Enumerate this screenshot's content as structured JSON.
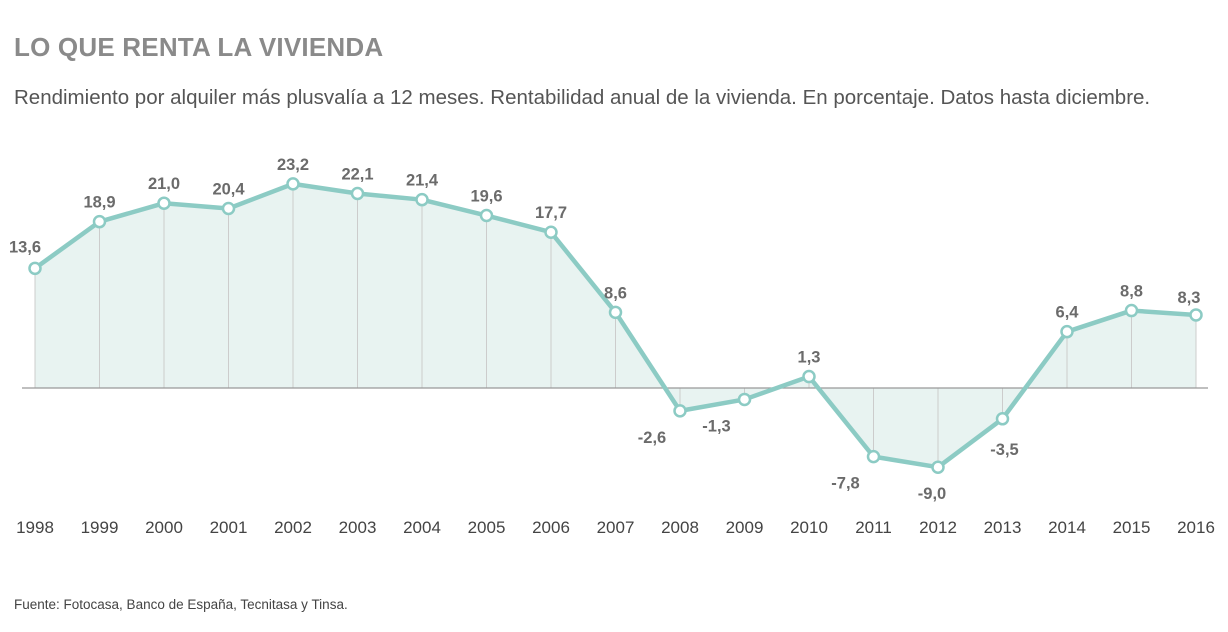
{
  "title": "LO QUE RENTA LA VIVIENDA",
  "subtitle": "Rendimiento por alquiler más plusvalía a 12 meses. Rentabilidad anual de la vivienda. En porcentaje. Datos hasta diciembre.",
  "source": "Fuente: Fotocasa, Banco de España, Tecnitasa y Tinsa.",
  "colors": {
    "line": "#8ccbc4",
    "area": "#e8f3f1",
    "grid": "#cccccc",
    "zero": "#999999",
    "label": "#6b6b6b"
  },
  "chart_data": {
    "type": "area",
    "title": "LO QUE RENTA LA VIVIENDA",
    "xlabel": "",
    "ylabel": "%",
    "categories": [
      "1998",
      "1999",
      "2000",
      "2001",
      "2002",
      "2003",
      "2004",
      "2005",
      "2006",
      "2007",
      "2008",
      "2009",
      "2010",
      "2011",
      "2012",
      "2013",
      "2014",
      "2015",
      "2016"
    ],
    "values": [
      13.6,
      18.9,
      21.0,
      20.4,
      23.2,
      22.1,
      21.4,
      19.6,
      17.7,
      8.6,
      -2.6,
      -1.3,
      1.3,
      -7.8,
      -9.0,
      -3.5,
      6.4,
      8.8,
      8.3
    ],
    "value_labels": [
      "13,6",
      "18,9",
      "21,0",
      "20,4",
      "23,2",
      "22,1",
      "21,4",
      "19,6",
      "17,7",
      "8,6",
      "-2,6",
      "-1,3",
      "1,3",
      "-7,8",
      "-9,0",
      "-3,5",
      "6,4",
      "8,8",
      "8,3"
    ],
    "ylim": [
      -10,
      25
    ],
    "grid": "vertical"
  }
}
